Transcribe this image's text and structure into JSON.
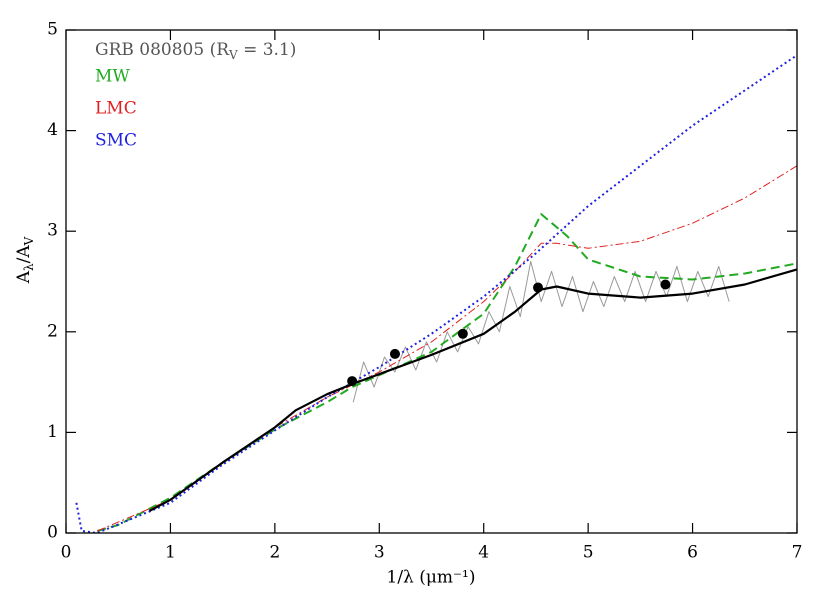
{
  "chart_data": {
    "type": "line",
    "annotation": [
      "GRB 080805 (R",
      "V",
      " = 3.1)"
    ],
    "xlabel": "1/λ (μm⁻¹)",
    "ylabel": [
      "A",
      "λ",
      "/A",
      "V"
    ],
    "xlim": [
      0,
      7
    ],
    "xticks": [
      0,
      1,
      2,
      3,
      4,
      5,
      6,
      7
    ],
    "ylim": [
      0,
      5
    ],
    "yticks": [
      0,
      1,
      2,
      3,
      4,
      5
    ],
    "series": [
      {
        "color": "#999999",
        "dash": "none",
        "width": 1,
        "x": [
          2.75,
          2.85,
          2.95,
          3.05,
          3.15,
          3.25,
          3.35,
          3.45,
          3.55,
          3.65,
          3.75,
          3.85,
          3.95,
          4.05,
          4.15,
          4.25,
          4.35,
          4.45,
          4.55,
          4.65,
          4.75,
          4.85,
          4.95,
          5.05,
          5.15,
          5.25,
          5.35,
          5.45,
          5.55,
          5.65,
          5.75,
          5.85,
          5.95,
          6.05,
          6.15,
          6.25,
          6.35
        ],
        "values": [
          1.3,
          1.7,
          1.45,
          1.75,
          1.6,
          1.85,
          1.62,
          1.9,
          1.7,
          2.0,
          1.8,
          2.05,
          1.88,
          2.2,
          2.0,
          2.45,
          2.15,
          2.7,
          2.3,
          2.6,
          2.25,
          2.55,
          2.2,
          2.5,
          2.25,
          2.55,
          2.3,
          2.6,
          2.3,
          2.6,
          2.35,
          2.65,
          2.3,
          2.6,
          2.35,
          2.65,
          2.3
        ]
      },
      {
        "name": "MW",
        "color": "#22aa22",
        "dash": "9 5",
        "width": 2,
        "x": [
          0.3,
          0.5,
          1,
          1.5,
          2,
          2.5,
          2.74,
          3,
          3.5,
          4,
          4.3,
          4.55,
          4.8,
          5,
          5.5,
          6,
          6.5,
          7
        ],
        "values": [
          0.02,
          0.08,
          0.35,
          0.7,
          1.03,
          1.3,
          1.45,
          1.57,
          1.8,
          2.18,
          2.65,
          3.17,
          2.95,
          2.72,
          2.55,
          2.52,
          2.58,
          2.68
        ]
      },
      {
        "name": "LMC",
        "color": "#e02020",
        "dash": "8 3 2 3",
        "width": 1,
        "x": [
          0.3,
          1,
          1.5,
          2,
          2.5,
          3,
          3.5,
          4,
          4.3,
          4.55,
          4.7,
          5,
          5.5,
          6,
          6.5,
          7
        ],
        "values": [
          0.02,
          0.33,
          0.7,
          1.05,
          1.35,
          1.6,
          1.9,
          2.3,
          2.6,
          2.88,
          2.88,
          2.83,
          2.9,
          3.08,
          3.33,
          3.65
        ]
      },
      {
        "name": "SMC",
        "color": "#2020e0",
        "dash": "2 3",
        "width": 2,
        "x": [
          0.1,
          0.15,
          0.3,
          1,
          1.5,
          2,
          2.5,
          3,
          3.5,
          4,
          4.5,
          5,
          5.5,
          6,
          6.5,
          7
        ],
        "values": [
          0.3,
          0.02,
          0.0,
          0.3,
          0.68,
          1.02,
          1.35,
          1.65,
          1.98,
          2.35,
          2.78,
          3.25,
          3.65,
          4.05,
          4.4,
          4.75
        ]
      },
      {
        "color": "#000000",
        "dash": "none",
        "width": 2.2,
        "x": [
          0.8,
          1,
          1.5,
          2,
          2.2,
          2.5,
          2.74,
          3,
          3.5,
          4,
          4.3,
          4.55,
          4.7,
          5,
          5.5,
          6,
          6.5,
          7
        ],
        "values": [
          0.22,
          0.33,
          0.7,
          1.05,
          1.22,
          1.38,
          1.48,
          1.58,
          1.77,
          1.98,
          2.2,
          2.42,
          2.45,
          2.38,
          2.34,
          2.38,
          2.47,
          2.62
        ]
      }
    ],
    "points": {
      "color": "#000000",
      "x": [
        2.74,
        3.15,
        3.8,
        4.52,
        5.74
      ],
      "values": [
        1.51,
        1.78,
        1.98,
        2.44,
        2.47
      ]
    }
  }
}
